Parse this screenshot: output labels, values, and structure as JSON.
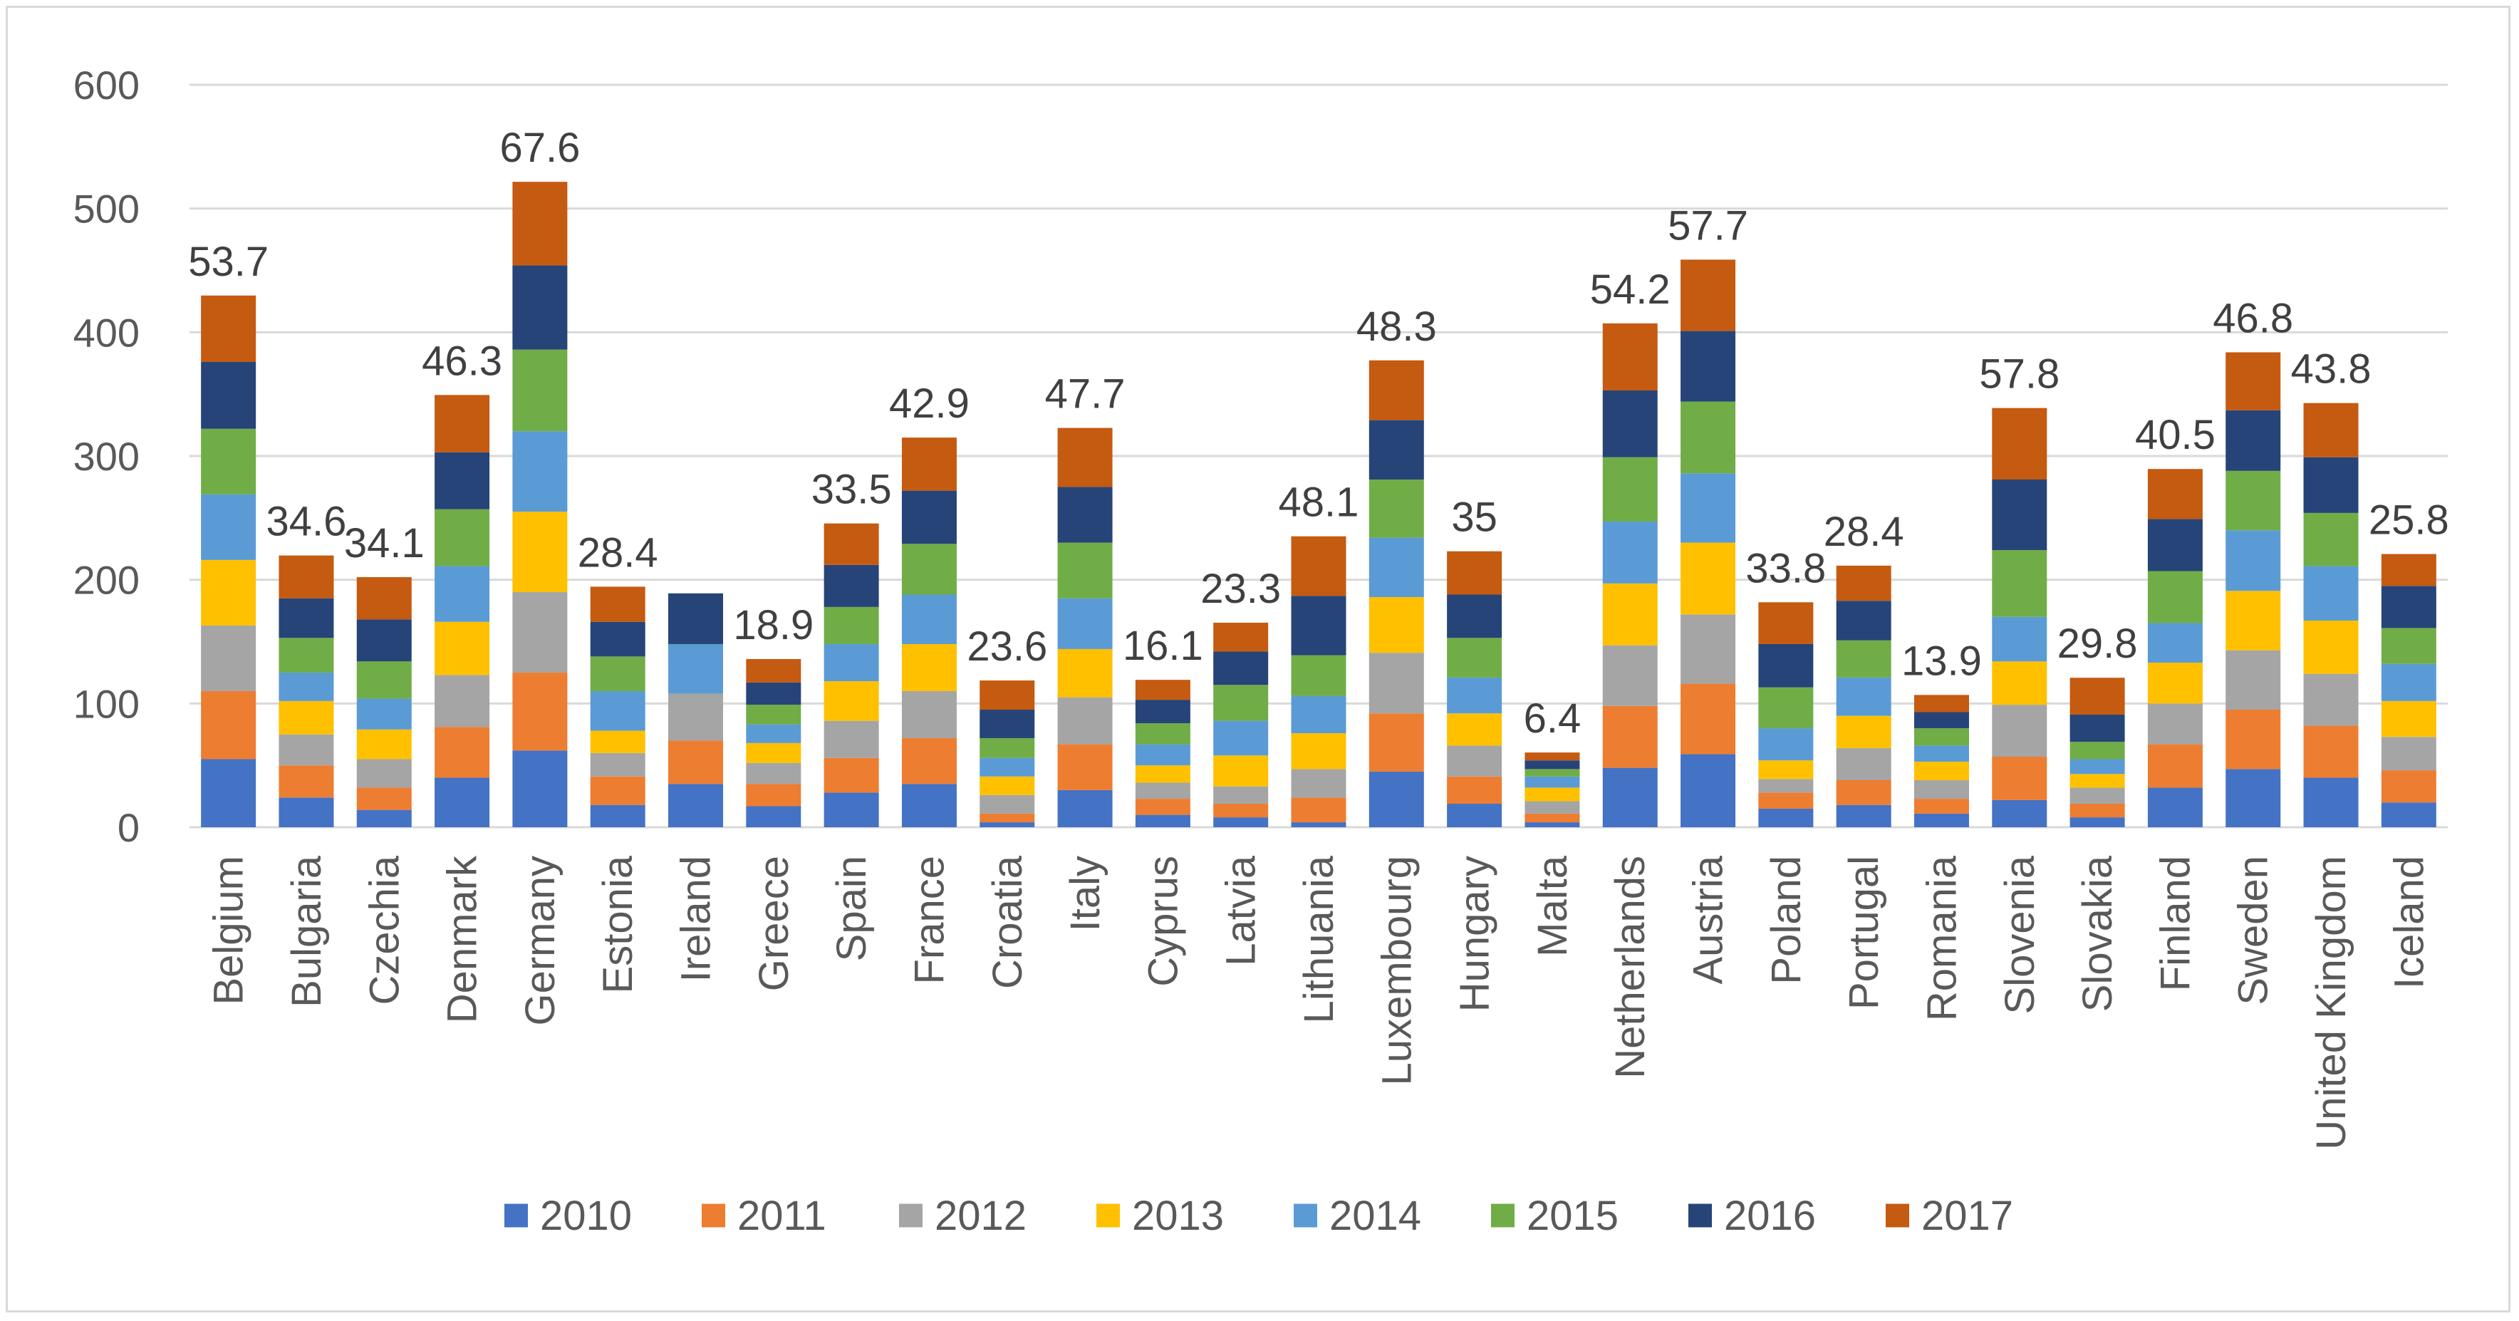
{
  "chart_data": {
    "type": "bar",
    "stacked": true,
    "title": "",
    "xlabel": "",
    "ylabel": "",
    "ylim": [
      0,
      600
    ],
    "yticks": [
      0,
      100,
      200,
      300,
      400,
      500,
      600
    ],
    "grid": true,
    "legend_position": "bottom",
    "categories": [
      "Belgium",
      "Bulgaria",
      "Czechia",
      "Denmark",
      "Germany",
      "Estonia",
      "Ireland",
      "Greece",
      "Spain",
      "France",
      "Croatia",
      "Italy",
      "Cyprus",
      "Latvia",
      "Lithuania",
      "Luxembourg",
      "Hungary",
      "Malta",
      "Netherlands",
      "Austria",
      "Poland",
      "Portugal",
      "Romania",
      "Slovenia",
      "Slovakia",
      "Finland",
      "Sweden",
      "United Kingdom",
      "Iceland"
    ],
    "series": [
      {
        "name": "2010",
        "color": "#4472c4",
        "values": [
          55,
          24,
          14,
          40,
          62,
          18,
          35,
          17,
          28,
          35,
          4,
          30,
          10,
          8,
          4,
          45,
          19,
          4,
          48,
          59,
          15,
          18,
          11,
          22,
          8,
          32,
          47,
          40,
          20
        ]
      },
      {
        "name": "2011",
        "color": "#ed7d31",
        "values": [
          55,
          26,
          18,
          41,
          63,
          23,
          35,
          18,
          28,
          37,
          7,
          37,
          13,
          11,
          20,
          47,
          22,
          7,
          50,
          57,
          13,
          20,
          12,
          35,
          11,
          35,
          48,
          42,
          26
        ]
      },
      {
        "name": "2012",
        "color": "#a5a5a5",
        "values": [
          53,
          25,
          23,
          42,
          65,
          19,
          38,
          17,
          30,
          38,
          15,
          38,
          13,
          14,
          23,
          49,
          25,
          10,
          49,
          56,
          11,
          26,
          15,
          42,
          13,
          33,
          48,
          42,
          27
        ]
      },
      {
        "name": "2013",
        "color": "#ffc000",
        "values": [
          53,
          27,
          24,
          43,
          65,
          18,
          0,
          16,
          32,
          38,
          15,
          39,
          14,
          25,
          29,
          45,
          26,
          11,
          50,
          58,
          15,
          26,
          15,
          35,
          11,
          33,
          48,
          43,
          29
        ]
      },
      {
        "name": "2014",
        "color": "#5b9bd5",
        "values": [
          53,
          23,
          25,
          45,
          65,
          32,
          40,
          15,
          30,
          40,
          15,
          41,
          17,
          28,
          30,
          48,
          29,
          9,
          50,
          56,
          26,
          31,
          13,
          36,
          12,
          32,
          49,
          44,
          30
        ]
      },
      {
        "name": "2015",
        "color": "#70ad47",
        "values": [
          53,
          28,
          30,
          46,
          66,
          28,
          0,
          16,
          30,
          41,
          16,
          45,
          17,
          29,
          33,
          47,
          32,
          6,
          52,
          58,
          33,
          30,
          14,
          54,
          14,
          42,
          48,
          43,
          29
        ]
      },
      {
        "name": "2016",
        "color": "#264478",
        "values": [
          54,
          32,
          34,
          46,
          68,
          28,
          41,
          18,
          34,
          43,
          23,
          45,
          19,
          27,
          48,
          48,
          35,
          7,
          54,
          57,
          35,
          32,
          13,
          57,
          22,
          42,
          49,
          45,
          34
        ]
      },
      {
        "name": "2017",
        "color": "#c55a11",
        "values": [
          53.7,
          34.6,
          34.1,
          46.3,
          67.6,
          28.4,
          0,
          18.9,
          33.5,
          42.9,
          23.6,
          47.7,
          16.1,
          23.3,
          48.1,
          48.3,
          35,
          6.4,
          54.2,
          57.7,
          33.8,
          28.4,
          13.9,
          57.8,
          29.8,
          40.5,
          46.8,
          43.8,
          25.8
        ]
      }
    ],
    "data_labels": [
      "53.7",
      "34.6",
      "34.1",
      "46.3",
      "67.6",
      "28.4",
      "",
      "18.9",
      "33.5",
      "42.9",
      "23.6",
      "47.7",
      "16.1",
      "23.3",
      "48.1",
      "48.3",
      "35",
      "6.4",
      "54.2",
      "57.7",
      "33.8",
      "28.4",
      "13.9",
      "57.8",
      "29.8",
      "40.5",
      "46.8",
      "43.8",
      "25.8"
    ]
  }
}
